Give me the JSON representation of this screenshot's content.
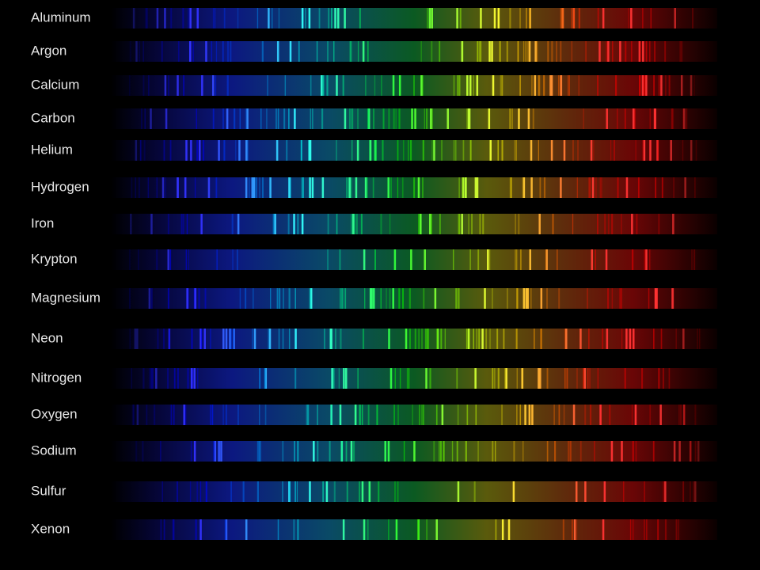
{
  "elements": [
    "Aluminum",
    "Argon",
    "Calcium",
    "Carbon",
    "Helium",
    "Hydrogen",
    "Iron",
    "Krypton",
    "Magnesium",
    "Neon",
    "Nitrogen",
    "Oxygen",
    "Sodium",
    "Sulfur",
    "Xenon"
  ]
}
